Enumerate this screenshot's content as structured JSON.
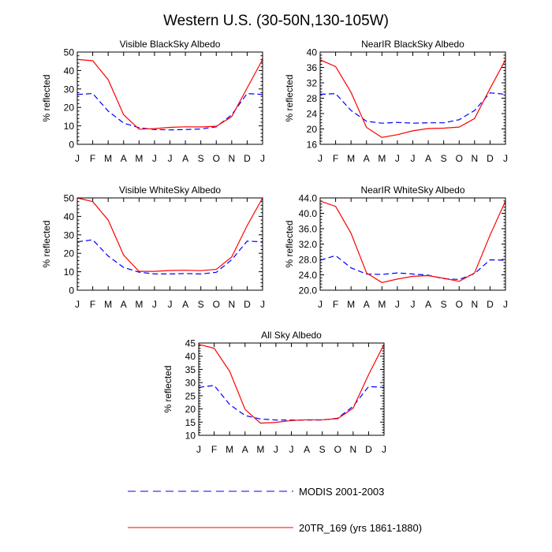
{
  "title": "Western U.S. (30-50N,130-105W)",
  "colors": {
    "modis": "#0000ff",
    "model": "#ff0000"
  },
  "legend": {
    "placement": "bottom-center",
    "items": [
      {
        "label": "MODIS 2001-2003",
        "style": "dashed",
        "color": "#0000ff"
      },
      {
        "label": "20TR_169 (yrs 1861-1880)",
        "style": "solid",
        "color": "#ff0000"
      }
    ]
  },
  "chart_data": [
    {
      "type": "line",
      "title": "Visible BlackSky Albedo",
      "ylabel": "% reflected",
      "categories": [
        "J",
        "F",
        "M",
        "A",
        "M",
        "J",
        "J",
        "A",
        "S",
        "O",
        "N",
        "D",
        "J"
      ],
      "ylim": [
        0,
        50
      ],
      "yticks": [
        "0",
        "10",
        "20",
        "30",
        "40",
        "50"
      ],
      "series": [
        {
          "name": "MODIS 2001-2003",
          "values": [
            27,
            27.5,
            18,
            11.5,
            9,
            8,
            7.8,
            8,
            8.3,
            9.5,
            16,
            27.5,
            27
          ]
        },
        {
          "name": "20TR_169 (yrs 1861-1880)",
          "values": [
            46,
            45.3,
            35,
            16,
            8.2,
            8.5,
            9.2,
            9.5,
            9.4,
            9.8,
            15,
            30.5,
            46
          ]
        }
      ]
    },
    {
      "type": "line",
      "title": "NearIR BlackSky Albedo",
      "ylabel": "% reflected",
      "categories": [
        "J",
        "F",
        "M",
        "A",
        "M",
        "J",
        "J",
        "A",
        "S",
        "O",
        "N",
        "D",
        "J"
      ],
      "ylim": [
        16,
        40
      ],
      "yticks": [
        "16",
        "20",
        "24",
        "28",
        "32",
        "36",
        "40"
      ],
      "series": [
        {
          "name": "MODIS 2001-2003",
          "values": [
            29,
            29.2,
            24.8,
            22,
            21.5,
            21.7,
            21.5,
            21.6,
            21.6,
            22.4,
            24.8,
            29.4,
            29
          ]
        },
        {
          "name": "20TR_169 (yrs 1861-1880)",
          "values": [
            38,
            36.2,
            29.5,
            20.4,
            17.8,
            18.5,
            19.5,
            20.1,
            20.2,
            20.5,
            22.7,
            30.5,
            38
          ]
        }
      ]
    },
    {
      "type": "line",
      "title": "Visible WhiteSky Albedo",
      "ylabel": "% reflected",
      "categories": [
        "J",
        "F",
        "M",
        "A",
        "M",
        "J",
        "J",
        "A",
        "S",
        "O",
        "N",
        "D",
        "J"
      ],
      "ylim": [
        0,
        50
      ],
      "yticks": [
        "0",
        "10",
        "20",
        "30",
        "40",
        "50"
      ],
      "series": [
        {
          "name": "MODIS 2001-2003",
          "values": [
            26.2,
            27.3,
            18.5,
            12.3,
            9.8,
            8.8,
            8.8,
            9,
            8.8,
            9.7,
            16.5,
            26.6,
            26.2
          ]
        },
        {
          "name": "20TR_169 (yrs 1861-1880)",
          "values": [
            50,
            48,
            38,
            19,
            10.2,
            10.2,
            10.7,
            10.8,
            10.6,
            11.3,
            18,
            35,
            50
          ]
        }
      ]
    },
    {
      "type": "line",
      "title": "NearIR WhiteSky Albedo",
      "ylabel": "% reflected",
      "categories": [
        "J",
        "F",
        "M",
        "A",
        "M",
        "J",
        "J",
        "A",
        "S",
        "O",
        "N",
        "D",
        "J"
      ],
      "ylim": [
        20,
        44
      ],
      "yticks": [
        "20.0",
        "24.0",
        "28.0",
        "32.0",
        "36.0",
        "40.0",
        "44.0"
      ],
      "series": [
        {
          "name": "MODIS 2001-2003",
          "values": [
            27.8,
            29,
            25.8,
            24.2,
            24.1,
            24.5,
            24.2,
            23.9,
            23,
            22.8,
            24.3,
            27.9,
            27.8
          ]
        },
        {
          "name": "20TR_169 (yrs 1861-1880)",
          "values": [
            43.2,
            41.8,
            34.8,
            24.5,
            22,
            22.9,
            23.6,
            23.8,
            23.1,
            22.3,
            24.5,
            34.3,
            43.2
          ]
        }
      ]
    },
    {
      "type": "line",
      "title": "All Sky Albedo",
      "ylabel": "% reflected",
      "categories": [
        "J",
        "F",
        "M",
        "A",
        "M",
        "J",
        "J",
        "A",
        "S",
        "O",
        "N",
        "D",
        "J"
      ],
      "ylim": [
        10,
        45
      ],
      "yticks": [
        "10",
        "15",
        "20",
        "25",
        "30",
        "35",
        "40",
        "45"
      ],
      "series": [
        {
          "name": "MODIS 2001-2003",
          "values": [
            28.2,
            28.9,
            21.7,
            17.5,
            16.2,
            15.8,
            15.8,
            15.8,
            15.8,
            16.5,
            21,
            28.5,
            28.2
          ]
        },
        {
          "name": "20TR_169 (yrs 1861-1880)",
          "values": [
            44.5,
            43,
            34.3,
            19.8,
            14.6,
            14.9,
            15.6,
            15.9,
            15.9,
            16.3,
            20.3,
            33,
            44.5
          ]
        }
      ]
    }
  ]
}
